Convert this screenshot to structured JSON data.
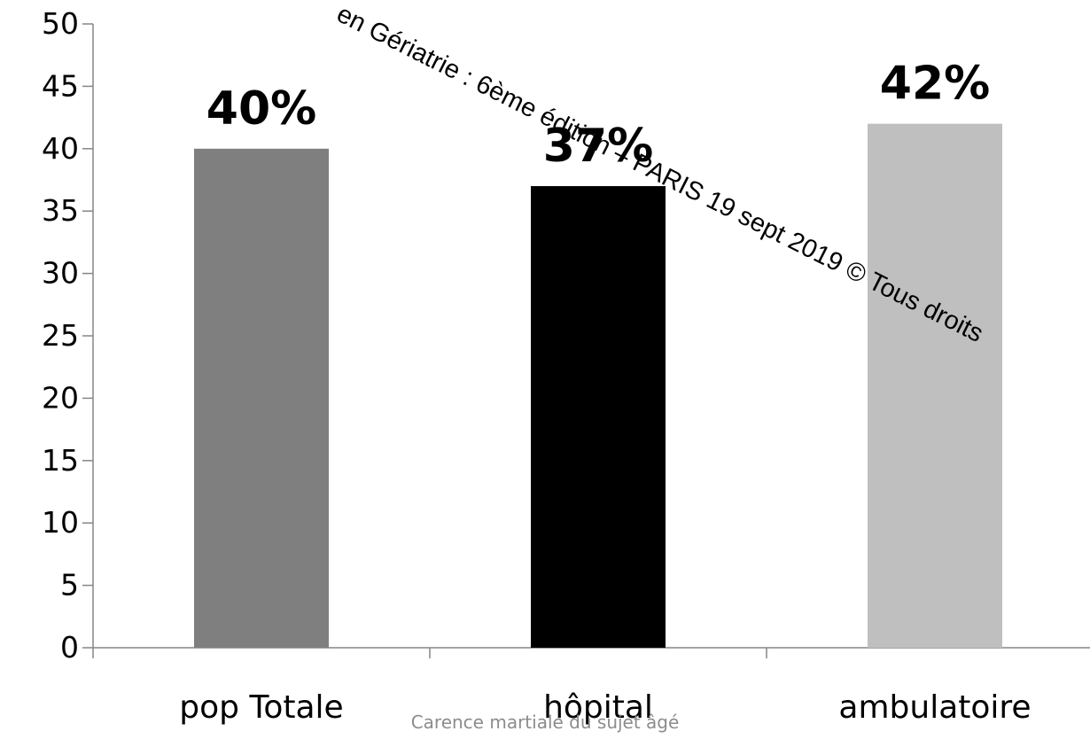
{
  "chart_data": {
    "type": "bar",
    "categories": [
      "pop Totale",
      "hôpital",
      "ambulatoire"
    ],
    "values": [
      40,
      37,
      42
    ],
    "data_labels": [
      "40%",
      "37%",
      "42%"
    ],
    "colors": [
      "#7f7f7f",
      "#000000",
      "#bfbfbf"
    ],
    "ylim": [
      0,
      50
    ],
    "yticks": [
      0,
      5,
      10,
      15,
      20,
      25,
      30,
      35,
      40,
      45,
      50
    ],
    "title": "",
    "xlabel": "",
    "ylabel": "",
    "grid": false,
    "legend": "none"
  },
  "footer": "Carence martiale du sujet âgé",
  "watermark": "en Gériatrie : 6ème édition – PARIS 19 sept 2019 © Tous droits"
}
